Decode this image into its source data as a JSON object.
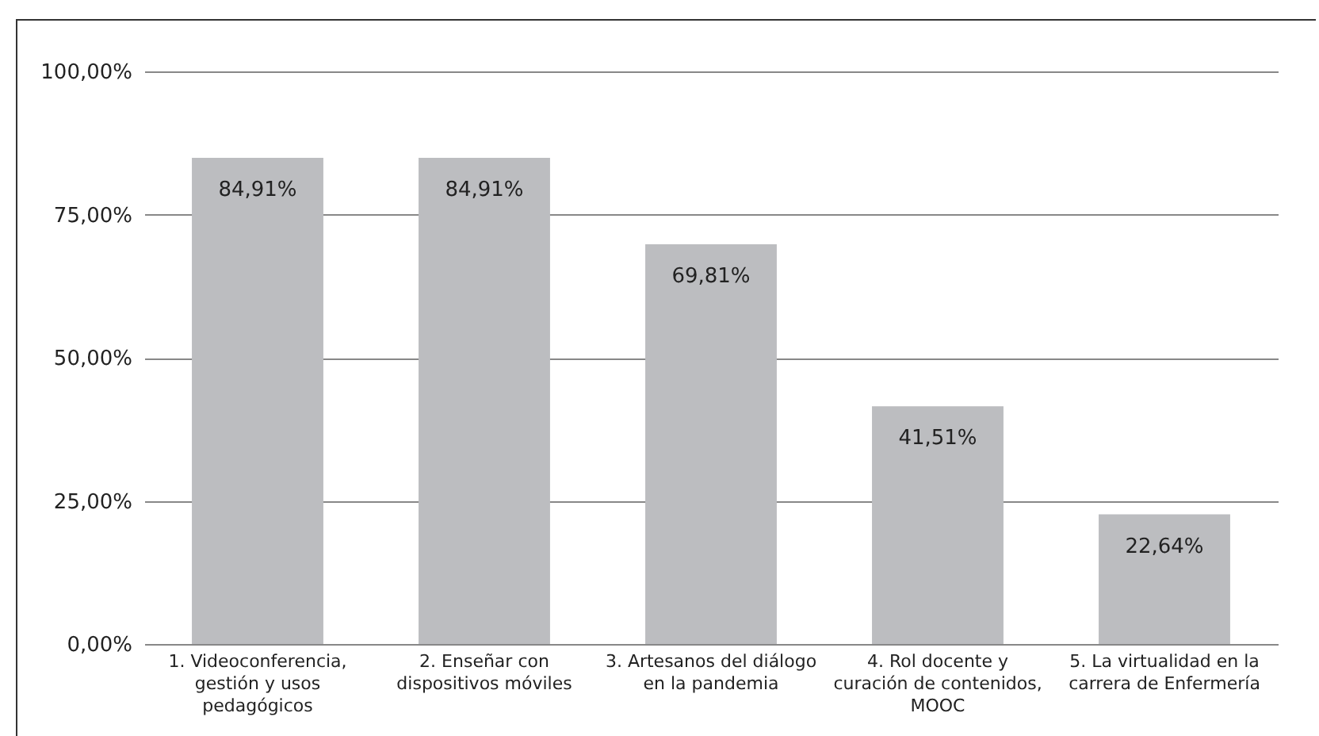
{
  "chart_data": {
    "type": "bar",
    "categories": [
      "1. Videoconferencia, gestión y usos pedagógicos",
      "2. Enseñar con dispositivos móviles",
      "3. Artesanos del diálogo en la pandemia",
      "4. Rol docente y curación de contenidos, MOOC",
      "5. La virtualidad en la carrera de Enfermería"
    ],
    "values": [
      84.91,
      84.91,
      69.81,
      41.51,
      22.64
    ],
    "value_labels": [
      "84,91%",
      "84,91%",
      "69,81%",
      "41,51%",
      "22,64%"
    ],
    "color": "#bcbdc0",
    "ylim": [
      0,
      100
    ],
    "yticks": [
      {
        "value": 0,
        "label": "0,00%"
      },
      {
        "value": 25,
        "label": "25,00%"
      },
      {
        "value": 50,
        "label": "50,00%"
      },
      {
        "value": 75,
        "label": "75,00%"
      },
      {
        "value": 100,
        "label": "100,00%"
      }
    ],
    "grid": "y"
  }
}
